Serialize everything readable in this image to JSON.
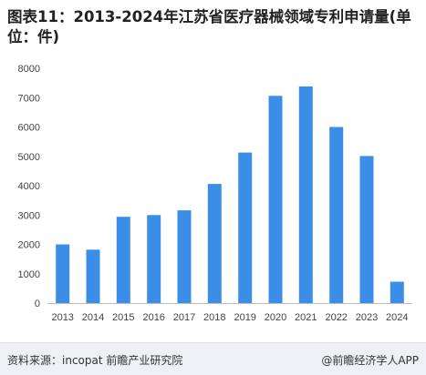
{
  "title": "图表11：2013-2024年江苏省医疗器械领域专利申请量(单位：件)",
  "footer": {
    "source": "资料来源：incopat 前瞻产业研究院",
    "brand": "@前瞻经济学人APP"
  },
  "colors": {
    "bar": "#3b8ee8",
    "axis": "#bfbfbf"
  },
  "chart_data": {
    "type": "bar",
    "title": "图表11：2013-2024年江苏省医疗器械领域专利申请量(单位：件)",
    "categories": [
      "2013",
      "2014",
      "2015",
      "2016",
      "2017",
      "2018",
      "2019",
      "2020",
      "2021",
      "2022",
      "2023",
      "2024"
    ],
    "values": [
      2000,
      1820,
      2940,
      3000,
      3160,
      4060,
      5130,
      7060,
      7380,
      6000,
      5010,
      730
    ],
    "yticks": [
      "0",
      "1000",
      "2000",
      "3000",
      "4000",
      "5000",
      "6000",
      "7000",
      "8000"
    ],
    "ylim": [
      0,
      8000
    ],
    "xlabel": "",
    "ylabel": "",
    "grid": false,
    "legend": "none"
  }
}
